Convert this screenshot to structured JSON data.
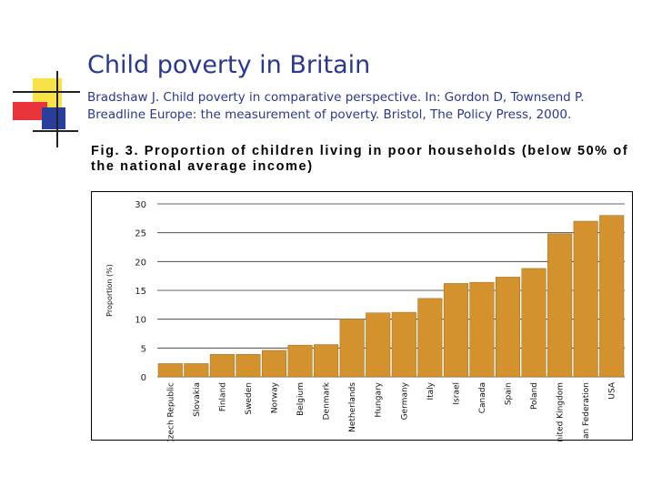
{
  "slide": {
    "title": "Child poverty in Britain",
    "citation": "Bradshaw J. Child poverty in comparative perspective. In: Gordon D, Townsend P. Breadline Europe: the measurement of poverty. Bristol, The Policy Press, 2000."
  },
  "figure": {
    "caption": "Fig. 3. Proportion of children living in poor households (below 50% of the national average income)"
  },
  "colors": {
    "title": "#2a3893",
    "bar": "#d4922f",
    "bar_stroke": "#9c6a1c",
    "grid": "#333333"
  },
  "chart_data": {
    "type": "bar",
    "title": "Fig. 3. Proportion of children living in poor households (below 50% of the national average income)",
    "xlabel": "",
    "ylabel": "Proportion (%)",
    "ylim": [
      0,
      30
    ],
    "yticks": [
      0,
      5,
      10,
      15,
      20,
      25,
      30
    ],
    "grid": true,
    "categories": [
      "Czech Republic",
      "Slovakia",
      "Finland",
      "Sweden",
      "Norway",
      "Belgium",
      "Denmark",
      "Netherlands",
      "Hungary",
      "Germany",
      "Italy",
      "Israel",
      "Canada",
      "Spain",
      "Poland",
      "United Kingdom",
      "Russian Federation",
      "USA"
    ],
    "values": [
      2.3,
      2.3,
      3.9,
      3.9,
      4.6,
      5.5,
      5.6,
      10.0,
      11.1,
      11.2,
      13.6,
      16.2,
      16.4,
      17.3,
      18.8,
      24.8,
      27.0,
      28.0
    ]
  }
}
